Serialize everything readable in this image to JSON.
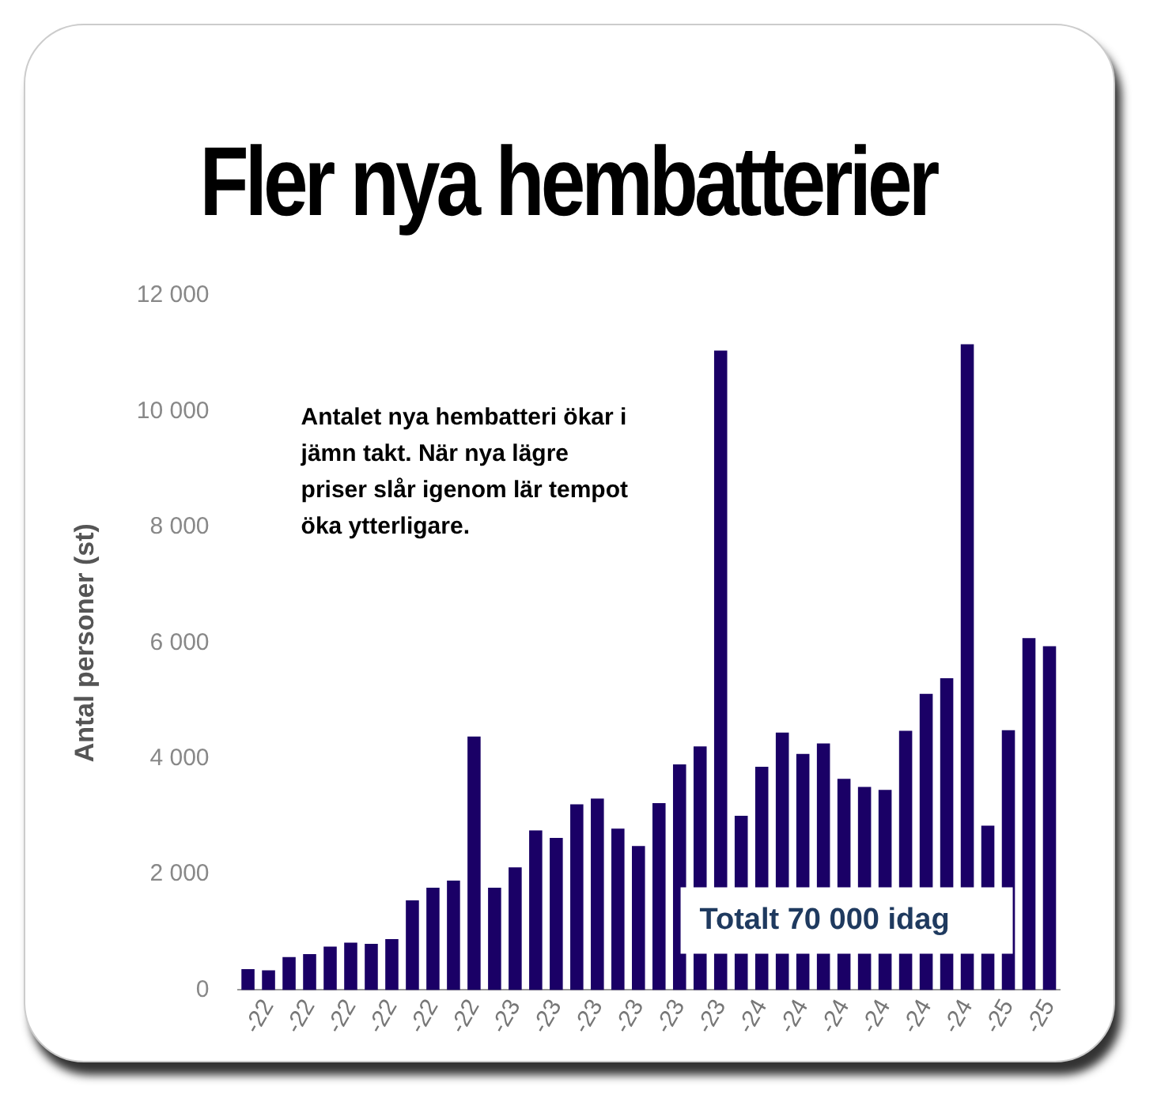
{
  "chart_data": {
    "type": "bar",
    "title": "Fler nya hembatterier",
    "ylabel": "Antal personer (st)",
    "annotations": [
      "Antalet nya hembatteri ökar i jämn takt. När nya lägre priser slår igenom lär tempot öka ytterligare.",
      "Totalt 70 000 idag"
    ],
    "categories": [
      null,
      "-22",
      null,
      "-22",
      null,
      "-22",
      null,
      "-22",
      null,
      "-22",
      null,
      "-22",
      null,
      "-23",
      null,
      "-23",
      null,
      "-23",
      null,
      "-23",
      null,
      "-23",
      null,
      "-23",
      null,
      "-24",
      null,
      "-24",
      null,
      "-24",
      null,
      "-24",
      null,
      "-24",
      null,
      "-24",
      null,
      "-25",
      null,
      "-25"
    ],
    "values": [
      360,
      340,
      570,
      620,
      750,
      820,
      800,
      880,
      1550,
      1770,
      1890,
      4380,
      1770,
      2120,
      2760,
      2630,
      3210,
      3310,
      2790,
      2490,
      3230,
      3900,
      4210,
      11050,
      3010,
      3860,
      4450,
      4080,
      4260,
      3650,
      3510,
      3460,
      4480,
      5120,
      5390,
      11160,
      2840,
      4490,
      6080,
      5940
    ],
    "color": "#1a0066",
    "ylim": [
      0,
      12000
    ],
    "yticks": [
      {
        "value": 0,
        "label": "0"
      },
      {
        "value": 2000,
        "label": "2 000"
      },
      {
        "value": 4000,
        "label": "4 000"
      },
      {
        "value": 6000,
        "label": "6 000"
      },
      {
        "value": 8000,
        "label": "8 000"
      },
      {
        "value": 10000,
        "label": "10 000"
      },
      {
        "value": 12000,
        "label": "12 000"
      }
    ]
  }
}
